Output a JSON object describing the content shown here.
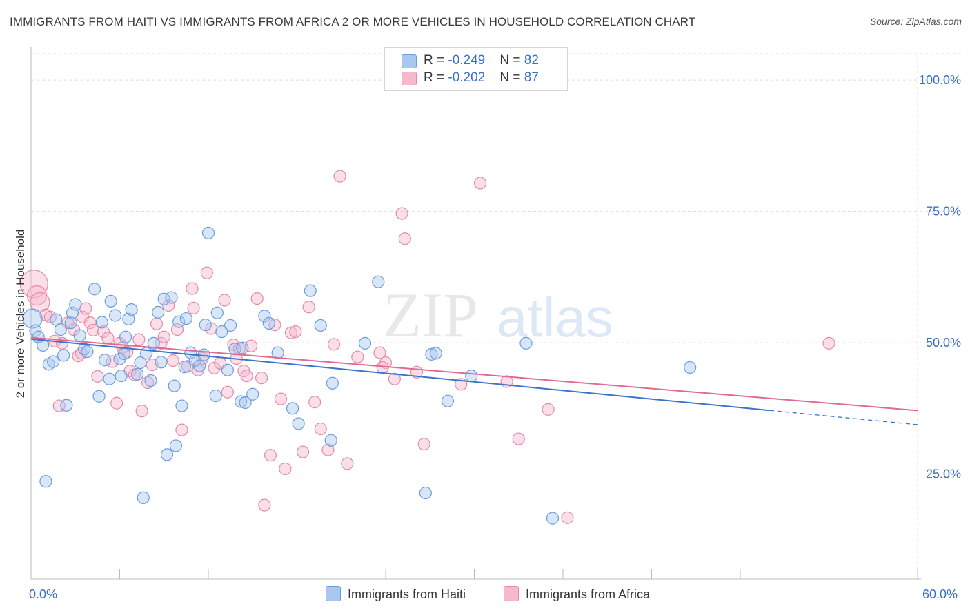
{
  "title": "IMMIGRANTS FROM HAITI VS IMMIGRANTS FROM AFRICA 2 OR MORE VEHICLES IN HOUSEHOLD CORRELATION CHART",
  "source": "Source: ZipAtlas.com",
  "watermark": {
    "zip": "ZIP",
    "atlas": "atlas"
  },
  "colors": {
    "haiti_fill": "#a9c7f0",
    "haiti_stroke": "#6a9de0",
    "haiti_line": "#3a74cc",
    "africa_fill": "#f6b8cb",
    "africa_stroke": "#e68aa6",
    "africa_line": "#e06a94",
    "axis_label": "#3a6fc4",
    "grid": "#dddddd"
  },
  "legend": {
    "haiti": {
      "r_label": "R = ",
      "r_value": "-0.249",
      "n_label": "N = ",
      "n_value": "82"
    },
    "africa": {
      "r_label": "R = ",
      "r_value": "-0.202",
      "n_label": "N = ",
      "n_value": "87"
    }
  },
  "chart_data": {
    "type": "scatter",
    "xlabel": "",
    "ylabel": "2 or more Vehicles in Household",
    "xlim": [
      0,
      60
    ],
    "ylim": [
      5,
      105
    ],
    "x_tick_labels": [
      "0.0%",
      "60.0%"
    ],
    "y_ticks": [
      25,
      50,
      75,
      100
    ],
    "y_tick_labels": [
      "25.0%",
      "50.0%",
      "75.0%",
      "100.0%"
    ],
    "grid": true,
    "legend_position": "top-center",
    "series": [
      {
        "name": "Immigrants from Haiti",
        "trend": {
          "x0": 0,
          "y0": 50.7,
          "x1": 60,
          "y1": 34.4,
          "solid_until": 50
        },
        "points": [
          [
            0.1,
            54.6,
            2
          ],
          [
            0.3,
            52.3,
            1
          ],
          [
            0.5,
            51.1,
            1
          ],
          [
            0.8,
            49.5,
            1
          ],
          [
            1.2,
            45.9,
            1
          ],
          [
            1.5,
            46.4,
            1
          ],
          [
            1.7,
            54.4,
            1
          ],
          [
            2.0,
            52.5,
            1
          ],
          [
            2.2,
            47.6,
            1
          ],
          [
            2.4,
            38.1,
            1
          ],
          [
            2.7,
            53.8,
            1
          ],
          [
            2.8,
            55.7,
            1
          ],
          [
            3.0,
            57.3,
            1
          ],
          [
            3.3,
            51.4,
            1
          ],
          [
            3.6,
            48.8,
            1
          ],
          [
            3.8,
            48.3,
            1
          ],
          [
            4.3,
            60.2,
            1
          ],
          [
            4.6,
            39.8,
            1
          ],
          [
            4.8,
            53.9,
            1
          ],
          [
            5.0,
            46.7,
            1
          ],
          [
            5.3,
            43.1,
            1
          ],
          [
            5.4,
            57.9,
            1
          ],
          [
            5.7,
            55.2,
            1
          ],
          [
            6.0,
            46.9,
            1
          ],
          [
            6.3,
            47.9,
            1
          ],
          [
            6.4,
            51.1,
            1
          ],
          [
            6.6,
            54.5,
            1
          ],
          [
            6.8,
            56.3,
            1
          ],
          [
            7.2,
            44.0,
            1
          ],
          [
            7.4,
            46.2,
            1
          ],
          [
            7.6,
            20.5,
            1
          ],
          [
            7.8,
            48.0,
            1
          ],
          [
            8.1,
            42.8,
            1
          ],
          [
            8.3,
            49.9,
            1
          ],
          [
            8.6,
            55.8,
            1
          ],
          [
            8.8,
            46.3,
            1
          ],
          [
            9.0,
            58.3,
            1
          ],
          [
            9.2,
            28.7,
            1
          ],
          [
            9.5,
            58.6,
            1
          ],
          [
            9.8,
            30.4,
            1
          ],
          [
            10.0,
            54.0,
            1
          ],
          [
            10.2,
            38.0,
            1
          ],
          [
            10.4,
            45.4,
            1
          ],
          [
            10.5,
            54.6,
            1
          ],
          [
            10.8,
            48.1,
            1
          ],
          [
            11.1,
            46.6,
            1
          ],
          [
            11.4,
            45.6,
            1
          ],
          [
            11.7,
            47.7,
            1
          ],
          [
            11.8,
            53.4,
            1
          ],
          [
            12.0,
            70.9,
            1
          ],
          [
            12.5,
            39.9,
            1
          ],
          [
            12.6,
            55.7,
            1
          ],
          [
            12.9,
            52.1,
            1
          ],
          [
            13.3,
            44.8,
            1
          ],
          [
            13.5,
            53.3,
            1
          ],
          [
            13.8,
            48.8,
            1
          ],
          [
            14.2,
            38.8,
            1
          ],
          [
            14.5,
            38.6,
            1
          ],
          [
            15.0,
            40.2,
            1
          ],
          [
            15.8,
            55.1,
            1
          ],
          [
            16.1,
            53.7,
            1
          ],
          [
            16.7,
            48.1,
            1
          ],
          [
            17.7,
            37.5,
            1
          ],
          [
            18.1,
            34.6,
            1
          ],
          [
            18.9,
            59.9,
            1
          ],
          [
            19.6,
            53.3,
            1
          ],
          [
            20.3,
            31.4,
            1
          ],
          [
            20.4,
            42.3,
            1
          ],
          [
            22.6,
            49.9,
            1
          ],
          [
            23.5,
            61.6,
            1
          ],
          [
            26.7,
            21.4,
            1
          ],
          [
            27.1,
            47.8,
            1
          ],
          [
            27.4,
            48.0,
            1
          ],
          [
            28.2,
            38.9,
            1
          ],
          [
            29.8,
            43.7,
            1
          ],
          [
            33.5,
            49.9,
            1
          ],
          [
            35.3,
            16.6,
            1
          ],
          [
            44.6,
            45.3,
            1
          ],
          [
            1.0,
            23.6,
            1
          ],
          [
            9.7,
            41.8,
            1
          ],
          [
            14.3,
            49.0,
            1
          ],
          [
            6.1,
            43.7,
            1
          ]
        ]
      },
      {
        "name": "Immigrants from Africa",
        "trend": {
          "x0": 0,
          "y0": 51.0,
          "x1": 60,
          "y1": 37.1
        },
        "points": [
          [
            0.2,
            61.2,
            3
          ],
          [
            0.4,
            59.0,
            2
          ],
          [
            0.6,
            57.7,
            2
          ],
          [
            1.0,
            55.3,
            1
          ],
          [
            1.3,
            54.9,
            1
          ],
          [
            1.6,
            50.3,
            1
          ],
          [
            1.9,
            38.0,
            1
          ],
          [
            2.1,
            49.9,
            1
          ],
          [
            2.5,
            53.8,
            1
          ],
          [
            2.9,
            52.5,
            1
          ],
          [
            3.2,
            47.5,
            1
          ],
          [
            3.5,
            54.9,
            1
          ],
          [
            3.7,
            56.5,
            1
          ],
          [
            4.0,
            53.8,
            1
          ],
          [
            4.2,
            52.4,
            1
          ],
          [
            4.5,
            43.6,
            1
          ],
          [
            4.9,
            52.1,
            1
          ],
          [
            5.2,
            50.9,
            1
          ],
          [
            5.5,
            46.4,
            1
          ],
          [
            5.8,
            38.5,
            1
          ],
          [
            6.0,
            49.9,
            1
          ],
          [
            6.2,
            49.1,
            1
          ],
          [
            6.5,
            48.2,
            1
          ],
          [
            6.7,
            44.6,
            1
          ],
          [
            7.0,
            43.9,
            1
          ],
          [
            7.3,
            50.6,
            1
          ],
          [
            7.5,
            37.0,
            1
          ],
          [
            7.9,
            42.4,
            1
          ],
          [
            8.2,
            45.8,
            1
          ],
          [
            8.5,
            53.6,
            1
          ],
          [
            8.8,
            49.9,
            1
          ],
          [
            9.0,
            51.1,
            1
          ],
          [
            9.3,
            57.1,
            1
          ],
          [
            9.6,
            46.6,
            1
          ],
          [
            9.9,
            52.5,
            1
          ],
          [
            10.2,
            33.4,
            1
          ],
          [
            10.6,
            45.5,
            1
          ],
          [
            10.9,
            60.3,
            1
          ],
          [
            11.0,
            56.6,
            1
          ],
          [
            11.3,
            44.8,
            1
          ],
          [
            11.6,
            47.0,
            1
          ],
          [
            11.9,
            63.3,
            1
          ],
          [
            12.2,
            52.7,
            1
          ],
          [
            12.4,
            45.2,
            1
          ],
          [
            12.8,
            46.1,
            1
          ],
          [
            13.1,
            58.1,
            1
          ],
          [
            13.3,
            40.6,
            1
          ],
          [
            13.7,
            49.6,
            1
          ],
          [
            13.9,
            47.0,
            1
          ],
          [
            14.1,
            48.9,
            1
          ],
          [
            14.4,
            44.6,
            1
          ],
          [
            14.6,
            43.7,
            1
          ],
          [
            14.9,
            49.4,
            1
          ],
          [
            15.3,
            58.4,
            1
          ],
          [
            15.6,
            43.3,
            1
          ],
          [
            15.8,
            19.1,
            1
          ],
          [
            16.2,
            28.6,
            1
          ],
          [
            16.5,
            53.4,
            1
          ],
          [
            16.9,
            39.3,
            1
          ],
          [
            17.2,
            26.0,
            1
          ],
          [
            17.6,
            51.9,
            1
          ],
          [
            17.9,
            52.1,
            1
          ],
          [
            18.4,
            29.2,
            1
          ],
          [
            18.8,
            56.8,
            1
          ],
          [
            19.2,
            38.7,
            1
          ],
          [
            19.6,
            33.6,
            1
          ],
          [
            20.1,
            29.6,
            1
          ],
          [
            20.5,
            49.7,
            1
          ],
          [
            20.9,
            81.7,
            1
          ],
          [
            21.4,
            27.0,
            1
          ],
          [
            22.1,
            47.3,
            1
          ],
          [
            23.6,
            48.1,
            1
          ],
          [
            24.0,
            46.2,
            1
          ],
          [
            24.6,
            43.1,
            1
          ],
          [
            25.1,
            74.6,
            1
          ],
          [
            25.3,
            69.8,
            1
          ],
          [
            26.1,
            44.4,
            1
          ],
          [
            26.6,
            30.7,
            1
          ],
          [
            29.1,
            42.1,
            1
          ],
          [
            30.4,
            80.4,
            1
          ],
          [
            32.2,
            42.6,
            1
          ],
          [
            33.0,
            31.7,
            1
          ],
          [
            35.0,
            37.3,
            1
          ],
          [
            36.3,
            16.7,
            1
          ],
          [
            54.0,
            49.9,
            1
          ],
          [
            3.4,
            48.0,
            1
          ],
          [
            23.8,
            45.3,
            1
          ]
        ]
      }
    ]
  }
}
